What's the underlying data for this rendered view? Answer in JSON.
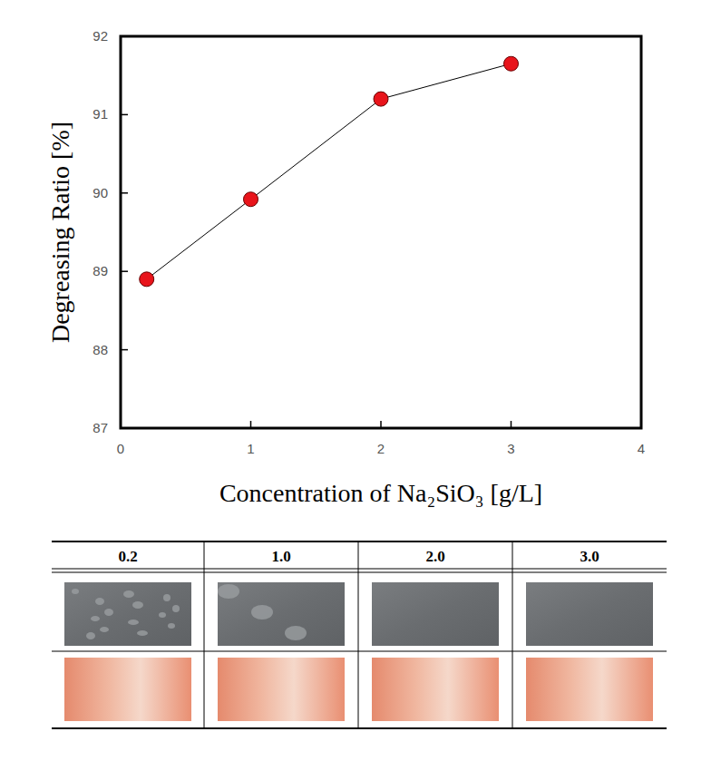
{
  "chart_data": {
    "type": "line",
    "x": [
      0.2,
      1,
      2,
      3
    ],
    "values": [
      88.9,
      89.92,
      91.2,
      91.65
    ],
    "x_label": "Concentration of Na₂SiO₃ [g/L]",
    "y_label": "Degreasing Ratio [%]",
    "xlim": [
      0,
      4
    ],
    "xticks": [
      0,
      1,
      2,
      3,
      4
    ],
    "ylim": [
      87,
      92
    ],
    "yticks": [
      87,
      88,
      89,
      90,
      91,
      92
    ],
    "grid": false,
    "color": "#e8141b",
    "marker": "circle",
    "line_style": "solid"
  },
  "table": {
    "header": [
      "0.2",
      "1.0",
      "2.0",
      "3.0"
    ]
  }
}
